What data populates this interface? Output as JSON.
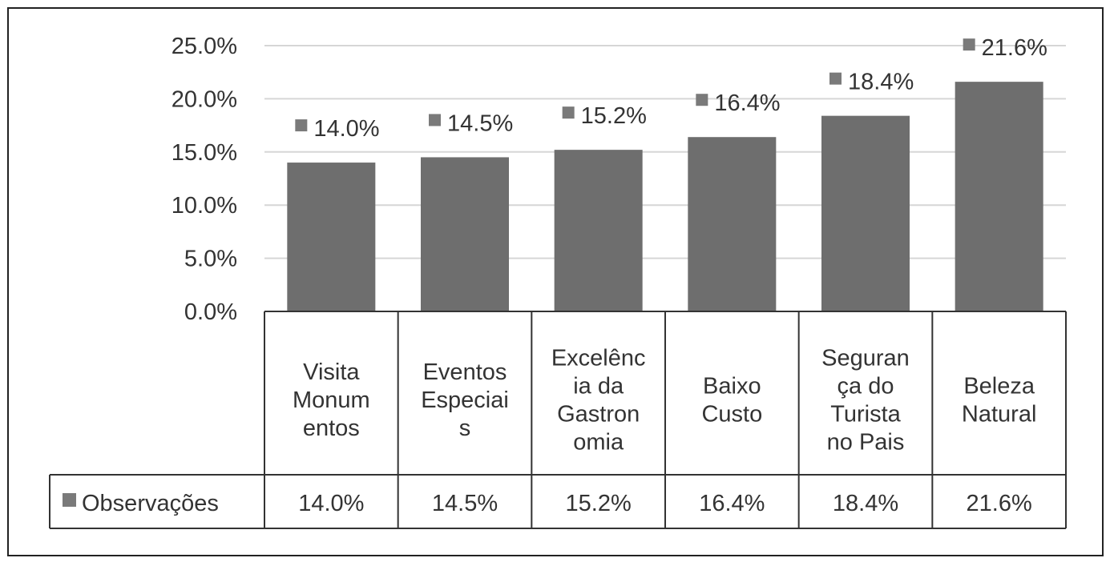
{
  "chart_data": {
    "type": "bar",
    "categories": [
      [
        "Visita",
        "Monum",
        "entos"
      ],
      [
        "Eventos",
        "Especiai",
        "s"
      ],
      [
        "Excelênc",
        "ia da",
        "Gastron",
        "omia"
      ],
      [
        "Baixo",
        "Custo"
      ],
      [
        "Seguran",
        "ça do",
        "Turista",
        "no Pais"
      ],
      [
        "Beleza",
        "Natural"
      ]
    ],
    "series": [
      {
        "name": "Observações",
        "values": [
          14.0,
          14.5,
          15.2,
          16.4,
          18.4,
          21.6
        ],
        "labels": [
          "14.0%",
          "14.5%",
          "15.2%",
          "16.4%",
          "18.4%",
          "21.6%"
        ],
        "color": "#6e6e6e"
      }
    ],
    "ylim": [
      0,
      25
    ],
    "yticks": [
      "0.0%",
      "5.0%",
      "10.0%",
      "15.0%",
      "20.0%",
      "25.0%"
    ],
    "ytick_values": [
      0,
      5,
      10,
      15,
      20,
      25
    ],
    "grid": true,
    "data_table": true,
    "legend_position": "data-table"
  }
}
